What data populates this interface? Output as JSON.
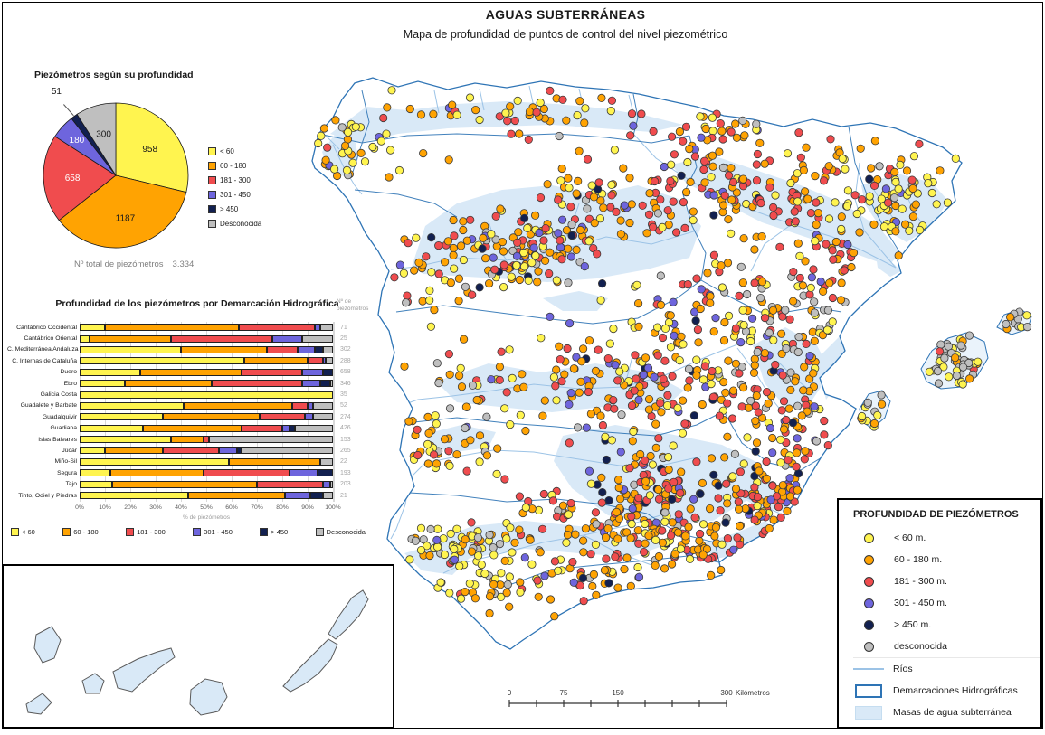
{
  "page": {
    "title": "AGUAS SUBTERRÁNEAS",
    "subtitle": "Mapa de profundidad de puntos de control del nivel piezométrico"
  },
  "colors": {
    "depth_classes": [
      "#FFF44F",
      "#FFA302",
      "#F04C4E",
      "#6E65DD",
      "#122050",
      "#BFBFBF"
    ],
    "water_mass": "#D9E9F7",
    "river": "#9CC3E6",
    "basin_boundary": "#2E74B5",
    "island_outline": "#5A5A5A",
    "grid_line": "#D9D9D9",
    "muted_text": "#808080"
  },
  "chart_data": [
    {
      "type": "pie",
      "title": "Piezómetros según su profundidad",
      "labels": [
        "< 60",
        "60 - 180",
        "181 - 300",
        "301 - 450",
        "> 450",
        "Desconocida"
      ],
      "values": [
        958,
        1187,
        658,
        180,
        51,
        300
      ],
      "total_label": "Nº total de piezómetros",
      "total_value": "3.334",
      "legend_position": "right"
    },
    {
      "type": "bar",
      "stacked": true,
      "horizontal": true,
      "title": "Profundidad de los piezómetros por Demarcación Hidrográfica",
      "col_header": "Nº de piezómetros",
      "xlabel": "% de piezómetros",
      "xlim": [
        0,
        100
      ],
      "x_ticks": [
        "0%",
        "10%",
        "20%",
        "30%",
        "40%",
        "50%",
        "60%",
        "70%",
        "80%",
        "90%",
        "100%"
      ],
      "categories": [
        "Cantábrico Occidental",
        "Cantábrico Oriental",
        "C. Mediterránea Andaluza",
        "C. Internas de Cataluña",
        "Duero",
        "Ebro",
        "Galicia Costa",
        "Guadalete y Barbate",
        "Guadalquivir",
        "Guadiana",
        "Islas Baleares",
        "Júcar",
        "Miño-Sil",
        "Segura",
        "Tajo",
        "Tinto, Odiel y Piedras"
      ],
      "counts": [
        71,
        25,
        302,
        288,
        658,
        346,
        35,
        52,
        274,
        426,
        153,
        265,
        22,
        193,
        203,
        21
      ],
      "series": [
        {
          "name": "< 60",
          "values": [
            10,
            4,
            40,
            65,
            24,
            18,
            100,
            41,
            33,
            25,
            36,
            10,
            59,
            12,
            13,
            43
          ]
        },
        {
          "name": "60 - 180",
          "values": [
            53,
            32,
            34,
            25,
            40,
            34,
            0,
            43,
            38,
            39,
            13,
            23,
            36,
            37,
            57,
            38
          ]
        },
        {
          "name": "181 - 300",
          "values": [
            30,
            40,
            12,
            6,
            24,
            36,
            0,
            6,
            18,
            16,
            2,
            22,
            0,
            34,
            26,
            0
          ]
        },
        {
          "name": "301 - 450",
          "values": [
            2,
            12,
            7,
            1,
            8,
            7,
            0,
            2,
            3,
            3,
            0,
            7,
            0,
            11,
            3,
            10
          ]
        },
        {
          "name": "> 450",
          "values": [
            0,
            0,
            3,
            0,
            4,
            4,
            0,
            0,
            0,
            2,
            0,
            2,
            0,
            6,
            0,
            5
          ]
        },
        {
          "name": "Desconocida",
          "values": [
            5,
            12,
            4,
            3,
            0,
            1,
            0,
            8,
            8,
            15,
            49,
            36,
            5,
            0,
            1,
            4
          ]
        }
      ]
    }
  ],
  "map_legend": {
    "title": "PROFUNDIDAD DE PIEZÓMETROS",
    "items": [
      "< 60 m.",
      "60 - 180 m.",
      "181 - 300 m.",
      "301 - 450 m.",
      "> 450 m.",
      "desconocida"
    ],
    "rios_label": "Ríos",
    "demarcaciones_label": "Demarcaciones Hidrográficas",
    "masas_label": "Masas de agua subterránea"
  },
  "scalebar": {
    "ticks": [
      "0",
      "75",
      "150",
      "300"
    ],
    "unit": "Kilómetros"
  }
}
